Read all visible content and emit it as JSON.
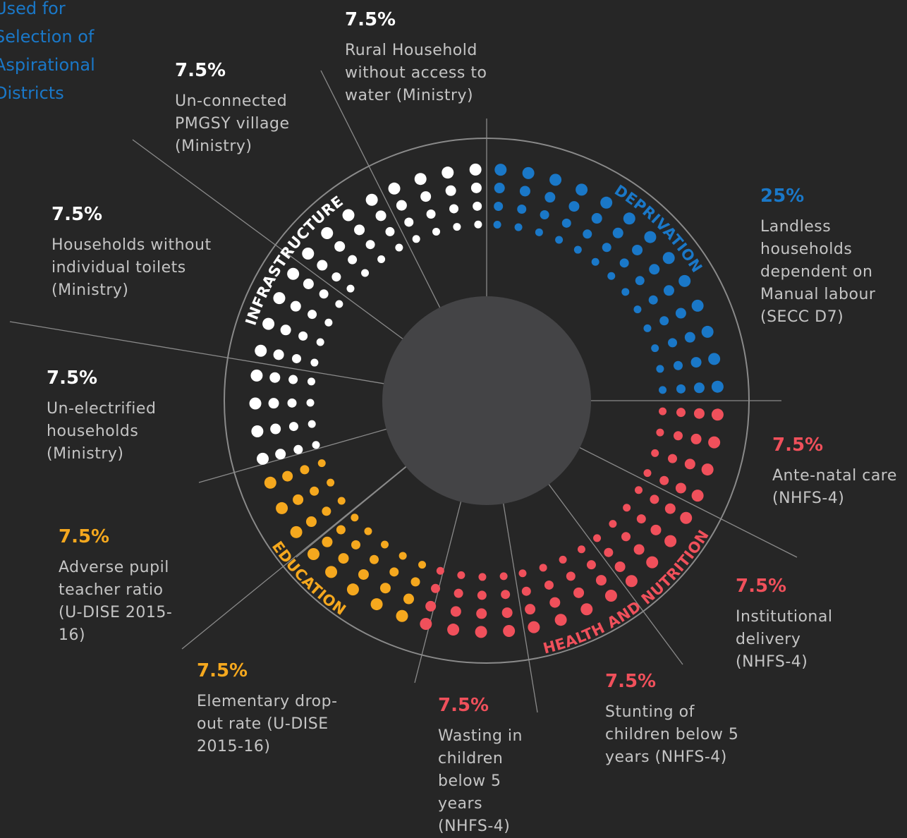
{
  "chart_data": {
    "type": "pie",
    "title": "Used for Selection of Aspirational Districts",
    "series": [
      {
        "name": "DEPRIVATION",
        "color": "#1a78c8",
        "categories": [
          "Landless households dependent on Manual labour (SECC D7)"
        ],
        "values": [
          25
        ],
        "value_labels": [
          "25%"
        ]
      },
      {
        "name": "HEALTH AND NUTRITION",
        "color": "#f0505b",
        "categories": [
          "Ante-natal care (NHFS-4)",
          "Institutional delivery (NHFS-4)",
          "Stunting of children below 5 years (NHFS-4)",
          "Wasting in children below 5 years (NHFS-4)"
        ],
        "values": [
          7.5,
          7.5,
          7.5,
          7.5
        ],
        "value_labels": [
          "7.5%",
          "7.5%",
          "7.5%",
          "7.5%"
        ]
      },
      {
        "name": "EDUCATION",
        "color": "#f5a81e",
        "categories": [
          "Elementary drop-out rate (U-DISE 2015-16)",
          "Adverse pupil teacher ratio (U-DISE 2015-16)"
        ],
        "values": [
          7.5,
          7.5
        ],
        "value_labels": [
          "7.5%",
          "7.5%"
        ]
      },
      {
        "name": "INFRASTRUCTURE",
        "color": "#ffffff",
        "categories": [
          "Un-electrified households (Ministry)",
          "Households without individual toilets (Ministry)",
          "Un-connected PMGSY village (Ministry)",
          "Rural Household without access to water (Ministry)"
        ],
        "values": [
          7.5,
          7.5,
          7.5,
          7.5
        ],
        "value_labels": [
          "7.5%",
          "7.5%",
          "7.5%",
          "7.5%"
        ]
      }
    ]
  }
}
